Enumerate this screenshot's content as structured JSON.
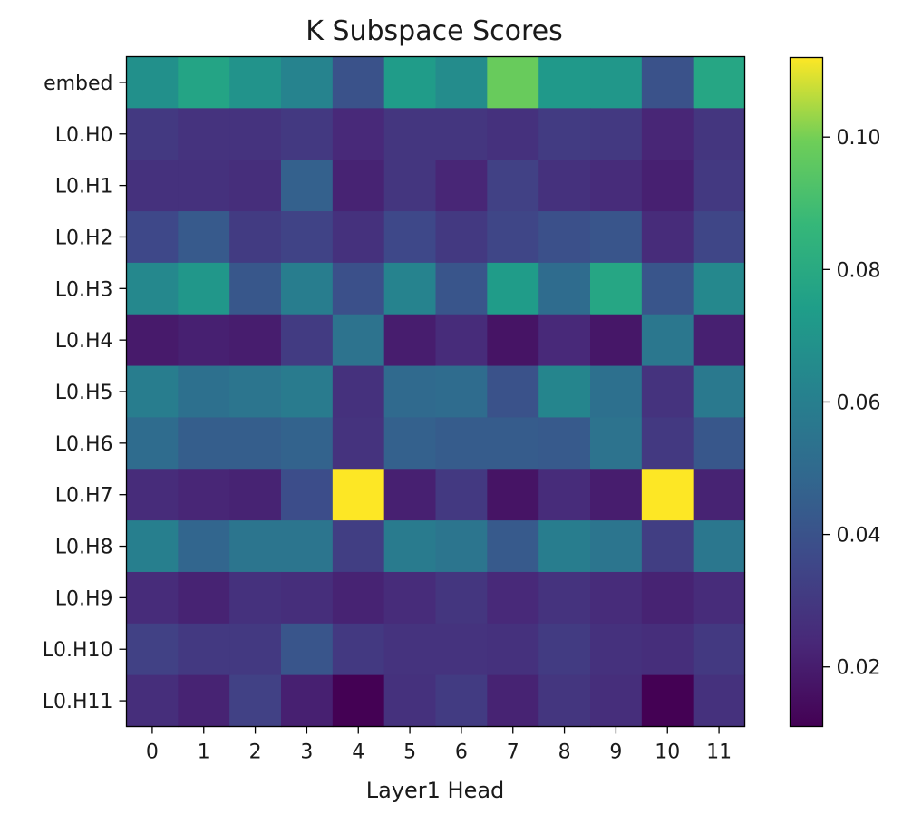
{
  "chart_data": {
    "type": "heatmap",
    "title": "K Subspace Scores",
    "xlabel": "Layer1 Head",
    "ylabel": "",
    "x_labels": [
      "0",
      "1",
      "2",
      "3",
      "4",
      "5",
      "6",
      "7",
      "8",
      "9",
      "10",
      "11"
    ],
    "y_labels": [
      "embed",
      "L0.H0",
      "L0.H1",
      "L0.H2",
      "L0.H3",
      "L0.H4",
      "L0.H5",
      "L0.H6",
      "L0.H7",
      "L0.H8",
      "L0.H9",
      "L0.H10",
      "L0.H11"
    ],
    "colormap": "viridis",
    "vmin": 0.011,
    "vmax": 0.112,
    "colorbar_ticks": [
      0.02,
      0.04,
      0.06,
      0.08,
      0.1
    ],
    "colorbar_tick_labels": [
      "0.02",
      "0.04",
      "0.06",
      "0.08",
      "0.10"
    ],
    "values": [
      [
        0.068,
        0.077,
        0.069,
        0.062,
        0.04,
        0.073,
        0.066,
        0.098,
        0.072,
        0.071,
        0.04,
        0.078
      ],
      [
        0.03,
        0.028,
        0.028,
        0.03,
        0.024,
        0.029,
        0.029,
        0.027,
        0.031,
        0.03,
        0.023,
        0.029
      ],
      [
        0.027,
        0.027,
        0.026,
        0.046,
        0.022,
        0.029,
        0.023,
        0.033,
        0.027,
        0.025,
        0.021,
        0.03
      ],
      [
        0.036,
        0.043,
        0.031,
        0.034,
        0.027,
        0.036,
        0.03,
        0.035,
        0.039,
        0.041,
        0.025,
        0.035
      ],
      [
        0.064,
        0.071,
        0.042,
        0.059,
        0.039,
        0.062,
        0.041,
        0.073,
        0.051,
        0.078,
        0.041,
        0.064
      ],
      [
        0.019,
        0.021,
        0.02,
        0.031,
        0.054,
        0.02,
        0.025,
        0.017,
        0.024,
        0.018,
        0.056,
        0.021
      ],
      [
        0.059,
        0.053,
        0.055,
        0.058,
        0.027,
        0.05,
        0.051,
        0.04,
        0.063,
        0.053,
        0.028,
        0.057
      ],
      [
        0.051,
        0.045,
        0.045,
        0.047,
        0.028,
        0.046,
        0.044,
        0.044,
        0.043,
        0.054,
        0.03,
        0.042
      ],
      [
        0.025,
        0.023,
        0.022,
        0.038,
        0.112,
        0.021,
        0.03,
        0.017,
        0.025,
        0.02,
        0.112,
        0.022
      ],
      [
        0.06,
        0.048,
        0.055,
        0.055,
        0.032,
        0.058,
        0.055,
        0.043,
        0.059,
        0.055,
        0.032,
        0.056
      ],
      [
        0.025,
        0.022,
        0.027,
        0.026,
        0.022,
        0.025,
        0.029,
        0.024,
        0.028,
        0.025,
        0.022,
        0.025
      ],
      [
        0.033,
        0.03,
        0.03,
        0.041,
        0.03,
        0.028,
        0.028,
        0.027,
        0.031,
        0.027,
        0.026,
        0.03
      ],
      [
        0.026,
        0.022,
        0.033,
        0.021,
        0.011,
        0.027,
        0.031,
        0.022,
        0.029,
        0.026,
        0.011,
        0.027
      ]
    ],
    "grid": false,
    "legend": "colorbar-right"
  }
}
